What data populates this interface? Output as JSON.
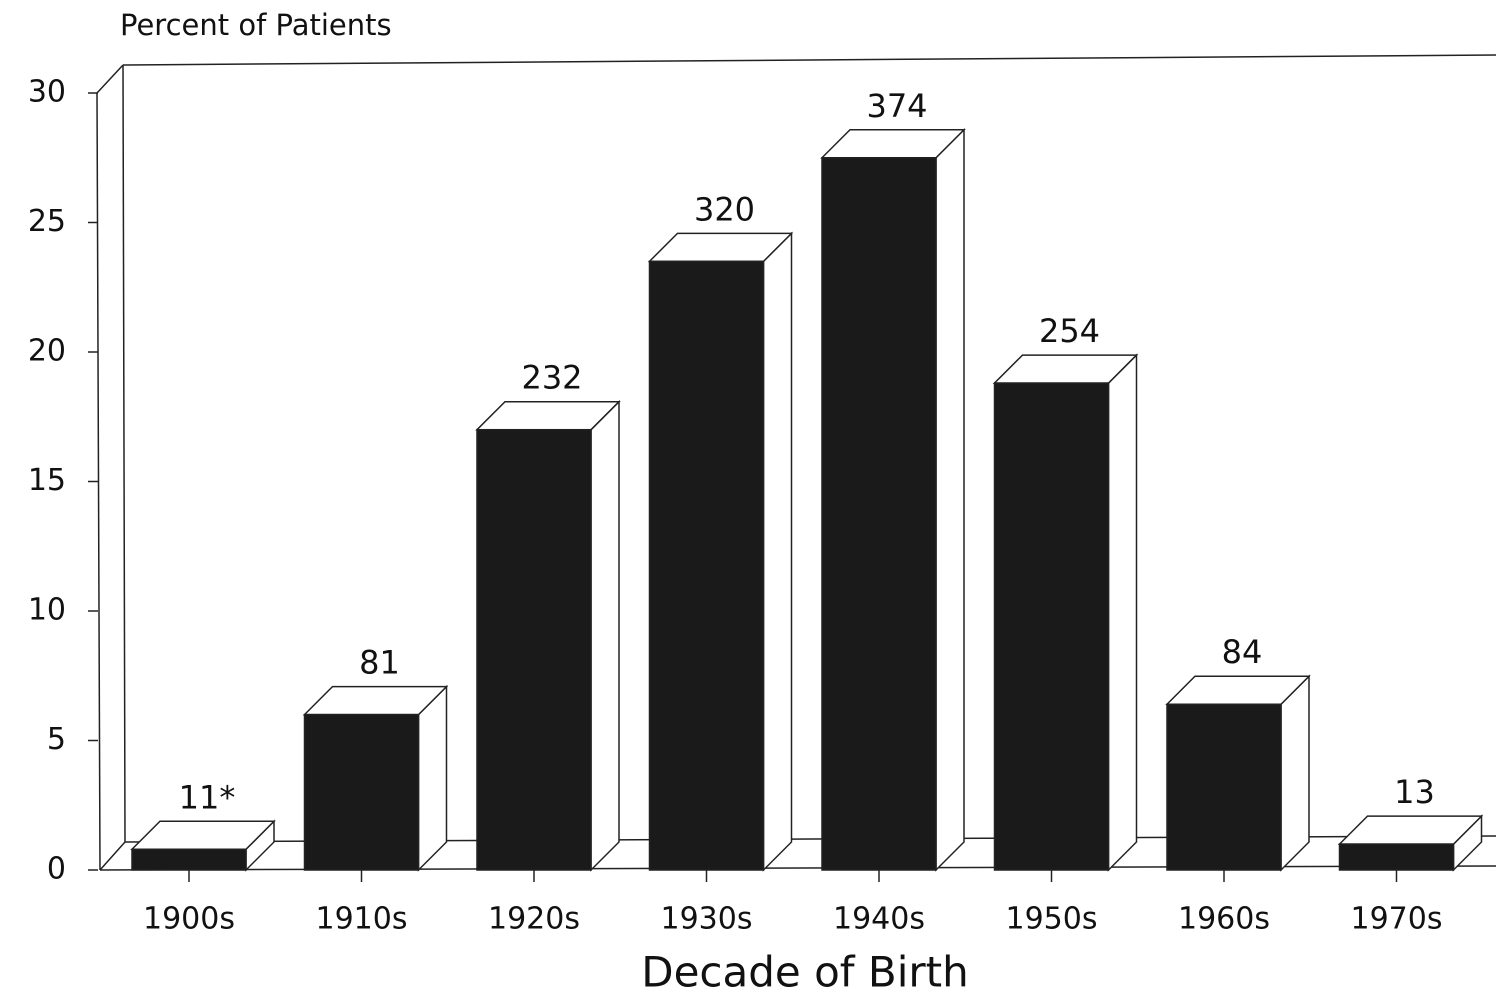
{
  "chart_data": {
    "type": "bar3d",
    "ylabel": "Percent of Patients",
    "xlabel": "Decade of Birth",
    "categories": [
      "1900s",
      "1910s",
      "1920s",
      "1930s",
      "1940s",
      "1950s",
      "1960s",
      "1970s"
    ],
    "values": [
      0.8,
      6.0,
      17.0,
      23.5,
      27.5,
      18.8,
      6.4,
      1.0
    ],
    "annotations": [
      "11*",
      "81",
      "232",
      "320",
      "374",
      "254",
      "84",
      "13"
    ],
    "color": "#1a1a1a",
    "ylim": [
      0,
      30
    ],
    "yticks": [
      0,
      5,
      10,
      15,
      20,
      25,
      30
    ]
  }
}
